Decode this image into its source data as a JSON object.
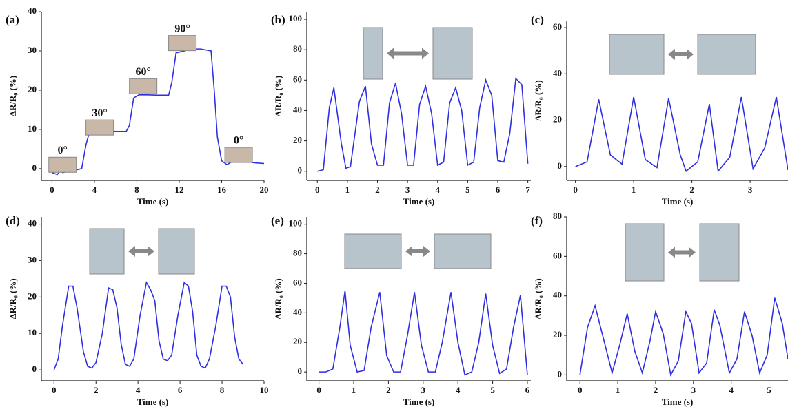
{
  "chart_data": [
    {
      "type": "line",
      "panel_label": "(a)",
      "xlabel": "Time (s)",
      "ylabel": "ΔR/R₀ (%)",
      "color": "#2f2fe0",
      "annotations": [
        "0°",
        "30°",
        "60°",
        "90°",
        "0°"
      ],
      "xlim": [
        -1,
        20
      ],
      "ylim": [
        -3,
        40
      ],
      "xticks": [
        0,
        4,
        8,
        12,
        16,
        20
      ],
      "yticks": [
        0,
        10,
        20,
        30,
        40
      ],
      "x": [
        0,
        0.5,
        0.8,
        1,
        2,
        2.8,
        3.2,
        3.5,
        4,
        5,
        6,
        7,
        7.3,
        7.7,
        8.2,
        9,
        10,
        11,
        11.3,
        11.7,
        12.5,
        13,
        14,
        15,
        15.3,
        15.6,
        16,
        16.5,
        17,
        18,
        19,
        20
      ],
      "values": [
        -1,
        -1.5,
        -0.5,
        -1,
        -0.5,
        0,
        6,
        9,
        9.5,
        9.8,
        9.5,
        9.5,
        11,
        18,
        18.8,
        18.8,
        18.7,
        18.7,
        22,
        29.5,
        30,
        30.5,
        30.5,
        30,
        20,
        8,
        2,
        1,
        1.8,
        2,
        1.5,
        1.3
      ]
    },
    {
      "type": "line",
      "panel_label": "(b)",
      "xlabel": "Time (s)",
      "ylabel": "ΔR/R₀ (%)",
      "color": "#2f2fe0",
      "xlim": [
        -0.35,
        7.1
      ],
      "ylim": [
        -6,
        105
      ],
      "xticks": [
        0,
        1,
        2,
        3,
        4,
        5,
        6,
        7
      ],
      "yticks": [
        0,
        20,
        40,
        60,
        80,
        100
      ],
      "x": [
        0,
        0.2,
        0.4,
        0.55,
        0.8,
        0.95,
        1.1,
        1.4,
        1.6,
        1.8,
        2,
        2.2,
        2.4,
        2.6,
        2.8,
        3,
        3.2,
        3.4,
        3.6,
        3.8,
        4,
        4.2,
        4.4,
        4.6,
        4.8,
        5,
        5.2,
        5.4,
        5.6,
        5.8,
        6,
        6.2,
        6.4,
        6.6,
        6.8,
        7
      ],
      "values": [
        0,
        1,
        42,
        55,
        18,
        2,
        3,
        46,
        56,
        18,
        4,
        4,
        45,
        58,
        38,
        4,
        4,
        44,
        56,
        38,
        4,
        6,
        45,
        55,
        40,
        4,
        6,
        42,
        60,
        50,
        7,
        6,
        25,
        61,
        57,
        5
      ]
    },
    {
      "type": "line",
      "panel_label": "(c)",
      "xlabel": "Time (s)",
      "ylabel": "ΔR/R₀ (%)",
      "color": "#2f2fe0",
      "xlim": [
        -0.15,
        3.65
      ],
      "ylim": [
        -6,
        63
      ],
      "xticks": [
        0,
        1,
        2,
        3
      ],
      "yticks": [
        0,
        20,
        40,
        60
      ],
      "x": [
        0,
        0.2,
        0.4,
        0.6,
        0.8,
        1,
        1.2,
        1.4,
        1.6,
        1.8,
        1.9,
        2.1,
        2.3,
        2.45,
        2.65,
        2.85,
        3.05,
        3.25,
        3.45,
        3.65
      ],
      "values": [
        0,
        2,
        29,
        5,
        1,
        30,
        3,
        -0.5,
        29.5,
        5,
        -2,
        2,
        27,
        -2,
        4,
        30,
        -1,
        8,
        30,
        -1.5
      ]
    },
    {
      "type": "line",
      "panel_label": "(d)",
      "xlabel": "Time (s)",
      "ylabel": "ΔR/R₀ (%)",
      "color": "#2f2fe0",
      "xlim": [
        -0.6,
        10
      ],
      "ylim": [
        -3,
        42
      ],
      "xticks": [
        0,
        2,
        4,
        6,
        8,
        10
      ],
      "yticks": [
        0,
        10,
        20,
        30,
        40
      ],
      "x": [
        0,
        0.2,
        0.4,
        0.7,
        0.9,
        1.1,
        1.4,
        1.6,
        1.8,
        2,
        2.3,
        2.6,
        2.8,
        3,
        3.2,
        3.4,
        3.6,
        3.8,
        4.1,
        4.4,
        4.6,
        4.8,
        5,
        5.2,
        5.4,
        5.6,
        5.9,
        6.2,
        6.4,
        6.6,
        6.8,
        7,
        7.2,
        7.4,
        7.7,
        8,
        8.2,
        8.4,
        8.6,
        8.8,
        9
      ],
      "values": [
        0,
        3,
        12,
        23,
        23,
        17,
        5,
        1,
        0.5,
        2,
        10,
        22.5,
        22,
        17,
        7,
        1.5,
        1,
        3,
        15,
        24,
        22,
        19,
        8,
        3,
        2.5,
        4,
        15,
        24,
        23,
        16,
        4,
        1,
        0.5,
        3,
        12,
        23,
        23,
        20,
        9,
        3,
        1.5
      ]
    },
    {
      "type": "line",
      "panel_label": "(e)",
      "xlabel": "Time (s)",
      "ylabel": "ΔR/R₀ (%)",
      "color": "#2f2fe0",
      "xlim": [
        -0.35,
        6.1
      ],
      "ylim": [
        -6,
        105
      ],
      "xticks": [
        0,
        1,
        2,
        3,
        4,
        5,
        6
      ],
      "yticks": [
        0,
        20,
        40,
        60,
        80,
        100
      ],
      "x": [
        0,
        0.2,
        0.4,
        0.6,
        0.75,
        0.9,
        1.1,
        1.3,
        1.5,
        1.75,
        1.95,
        2.15,
        2.35,
        2.55,
        2.75,
        2.95,
        3.15,
        3.35,
        3.55,
        3.8,
        4,
        4.2,
        4.4,
        4.6,
        4.8,
        5,
        5.2,
        5.4,
        5.6,
        5.8,
        6
      ],
      "values": [
        0,
        0,
        2,
        30,
        55,
        18,
        0,
        1,
        30,
        54,
        11,
        0,
        0,
        25,
        54,
        18,
        0,
        0,
        20,
        54,
        20,
        -2,
        0,
        20,
        53,
        18,
        -1,
        2,
        30,
        52,
        -2
      ]
    },
    {
      "type": "line",
      "panel_label": "(f)",
      "xlabel": "Time (s)",
      "ylabel": "ΔR/R₀ (%)",
      "color": "#2f2fe0",
      "xlim": [
        -0.35,
        5.5
      ],
      "ylim": [
        -3,
        80
      ],
      "xticks": [
        0,
        1,
        2,
        3,
        4,
        5
      ],
      "yticks": [
        0,
        20,
        40,
        60,
        80
      ],
      "x": [
        0,
        0.2,
        0.4,
        0.6,
        0.85,
        1.05,
        1.25,
        1.45,
        1.65,
        1.85,
        2,
        2.2,
        2.4,
        2.6,
        2.8,
        2.95,
        3.15,
        3.35,
        3.55,
        3.7,
        3.95,
        4.15,
        4.35,
        4.55,
        4.75,
        4.95,
        5.15,
        5.35,
        5.5
      ],
      "values": [
        0,
        24,
        35,
        20,
        1,
        15,
        31,
        12,
        1,
        17,
        32,
        21,
        0,
        7,
        32,
        26,
        1,
        6,
        33,
        25,
        1,
        8,
        32,
        20,
        1,
        10,
        39,
        26,
        8
      ]
    }
  ]
}
